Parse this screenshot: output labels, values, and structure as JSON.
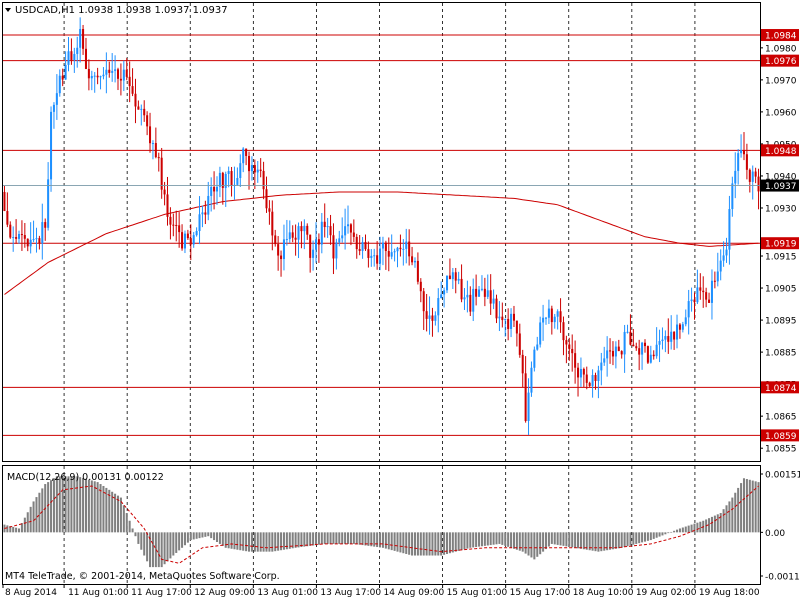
{
  "header": {
    "symbol_line": "USDCAD,H1  1.0938 1.0938 1.0937 1.0937"
  },
  "footer": {
    "copyright": "MT4 TeleTrade, © 2001-2014, MetaQuotes Software Corp."
  },
  "colors": {
    "background": "#ffffff",
    "bull_candle": "#1e90ff",
    "bear_candle": "#cc0000",
    "level_line": "#cc0000",
    "moving_average": "#cc0000",
    "grid": "#000000",
    "price_tag_bg": "#cc0000",
    "current_price_tag_bg": "#000000",
    "macd_histogram": "#808080",
    "macd_signal": "#cc0000"
  },
  "chart_data": [
    {
      "type": "candlestick",
      "title": "USDCAD,H1",
      "ylim": [
        1.0851,
        1.0994
      ],
      "yticks": [
        1.098,
        1.097,
        1.096,
        1.095,
        1.094,
        1.093,
        1.0915,
        1.0905,
        1.0895,
        1.0885,
        1.0875,
        1.0865,
        1.0855
      ],
      "xticks": [
        "8 Aug 2014",
        "11 Aug 01:00",
        "11 Aug 17:00",
        "12 Aug 09:00",
        "13 Aug 01:00",
        "13 Aug 17:00",
        "14 Aug 09:00",
        "15 Aug 01:00",
        "15 Aug 17:00",
        "18 Aug 10:00",
        "19 Aug 02:00",
        "19 Aug 18:00"
      ],
      "horizontal_levels": [
        1.0984,
        1.0976,
        1.0948,
        1.0919,
        1.0874,
        1.0859
      ],
      "current_price": 1.0937,
      "price_path": [
        [
          0,
          1.0935
        ],
        [
          3,
          1.0918
        ],
        [
          7,
          1.092
        ],
        [
          12,
          1.0918
        ],
        [
          15,
          1.0925
        ],
        [
          17,
          1.0958
        ],
        [
          20,
          1.097
        ],
        [
          24,
          1.0978
        ],
        [
          27,
          1.0985
        ],
        [
          30,
          1.0972
        ],
        [
          33,
          1.0968
        ],
        [
          38,
          1.0972
        ],
        [
          42,
          1.0971
        ],
        [
          45,
          1.0965
        ],
        [
          48,
          1.096
        ],
        [
          51,
          1.0952
        ],
        [
          53,
          1.0948
        ],
        [
          55,
          1.0938
        ],
        [
          57,
          1.0927
        ],
        [
          60,
          1.0924
        ],
        [
          62,
          1.0918
        ],
        [
          65,
          1.0921
        ],
        [
          68,
          1.0926
        ],
        [
          71,
          1.0932
        ],
        [
          74,
          1.0937
        ],
        [
          77,
          1.094
        ],
        [
          80,
          1.0938
        ],
        [
          83,
          1.0946
        ],
        [
          86,
          1.0942
        ],
        [
          89,
          1.094
        ],
        [
          91,
          1.0932
        ],
        [
          93,
          1.092
        ],
        [
          95,
          1.0913
        ],
        [
          98,
          1.0921
        ],
        [
          101,
          1.0922
        ],
        [
          104,
          1.0924
        ],
        [
          106,
          1.0915
        ],
        [
          108,
          1.0919
        ],
        [
          111,
          1.0926
        ],
        [
          114,
          1.0917
        ],
        [
          116,
          1.0923
        ],
        [
          119,
          1.0927
        ],
        [
          122,
          1.0919
        ],
        [
          125,
          1.0918
        ],
        [
          127,
          1.0913
        ],
        [
          130,
          1.0916
        ],
        [
          133,
          1.0917
        ],
        [
          136,
          1.0918
        ],
        [
          139,
          1.0917
        ],
        [
          142,
          1.0913
        ],
        [
          144,
          1.0905
        ],
        [
          146,
          1.0896
        ],
        [
          149,
          1.0898
        ],
        [
          152,
          1.0906
        ],
        [
          155,
          1.091
        ],
        [
          158,
          1.0904
        ],
        [
          161,
          1.09
        ],
        [
          164,
          1.0907
        ],
        [
          167,
          1.0902
        ],
        [
          170,
          1.0898
        ],
        [
          173,
          1.0896
        ],
        [
          176,
          1.0893
        ],
        [
          178,
          1.0886
        ],
        [
          180,
          1.0866
        ],
        [
          182,
          1.0878
        ],
        [
          185,
          1.0893
        ],
        [
          188,
          1.0898
        ],
        [
          191,
          1.0895
        ],
        [
          194,
          1.0888
        ],
        [
          197,
          1.088
        ],
        [
          200,
          1.0878
        ],
        [
          203,
          1.0875
        ],
        [
          206,
          1.088
        ],
        [
          209,
          1.0886
        ],
        [
          212,
          1.0883
        ],
        [
          215,
          1.0892
        ],
        [
          218,
          1.0886
        ],
        [
          221,
          1.0885
        ],
        [
          224,
          1.0884
        ],
        [
          227,
          1.0888
        ],
        [
          230,
          1.0891
        ],
        [
          233,
          1.0893
        ],
        [
          236,
          1.0899
        ],
        [
          239,
          1.0903
        ],
        [
          242,
          1.0901
        ],
        [
          245,
          1.0908
        ],
        [
          247,
          1.0913
        ],
        [
          249,
          1.092
        ],
        [
          251,
          1.0935
        ],
        [
          253,
          1.0948
        ],
        [
          255,
          1.0944
        ],
        [
          257,
          1.0941
        ],
        [
          259,
          1.0937
        ]
      ],
      "moving_average": [
        [
          0,
          1.0903
        ],
        [
          15,
          1.0913
        ],
        [
          35,
          1.0922
        ],
        [
          55,
          1.0928
        ],
        [
          75,
          1.0932
        ],
        [
          95,
          1.0934
        ],
        [
          115,
          1.0935
        ],
        [
          135,
          1.0935
        ],
        [
          155,
          1.0934
        ],
        [
          175,
          1.0933
        ],
        [
          190,
          1.0931
        ],
        [
          205,
          1.0926
        ],
        [
          220,
          1.0921
        ],
        [
          232,
          1.0919
        ],
        [
          242,
          1.0918
        ],
        [
          259,
          1.0919
        ]
      ]
    },
    {
      "type": "bar",
      "title": "MACD(12,26,9) 0.00131 0.00122",
      "ylim": [
        -0.00113,
        0.00151
      ],
      "yticks": [
        0.00151,
        0.0,
        -0.00113
      ],
      "histogram_path": [
        [
          0,
          0.0002
        ],
        [
          5,
          0.0001
        ],
        [
          10,
          0.0008
        ],
        [
          14,
          0.00125
        ],
        [
          18,
          0.00145
        ],
        [
          25,
          0.00145
        ],
        [
          32,
          0.0013
        ],
        [
          40,
          0.0009
        ],
        [
          46,
          -0.0003
        ],
        [
          50,
          -0.0009
        ],
        [
          54,
          -0.0009
        ],
        [
          58,
          -0.0006
        ],
        [
          64,
          -0.0002
        ],
        [
          70,
          -0.0001
        ],
        [
          76,
          -0.0004
        ],
        [
          84,
          -0.0005
        ],
        [
          92,
          -0.0005
        ],
        [
          100,
          -0.0004
        ],
        [
          110,
          -0.0003
        ],
        [
          120,
          -0.0003
        ],
        [
          130,
          -0.0004
        ],
        [
          140,
          -0.0006
        ],
        [
          150,
          -0.0006
        ],
        [
          160,
          -0.0004
        ],
        [
          170,
          -0.0003
        ],
        [
          178,
          -0.0005
        ],
        [
          182,
          -0.0007
        ],
        [
          188,
          -0.0003
        ],
        [
          196,
          -0.0004
        ],
        [
          204,
          -0.0005
        ],
        [
          212,
          -0.0004
        ],
        [
          222,
          -0.0002
        ],
        [
          232,
          0.0001
        ],
        [
          240,
          0.0003
        ],
        [
          246,
          0.0005
        ],
        [
          250,
          0.0009
        ],
        [
          254,
          0.0014
        ],
        [
          259,
          0.0013
        ]
      ],
      "signal_path": [
        [
          0,
          0.0001
        ],
        [
          10,
          0.0003
        ],
        [
          20,
          0.0011
        ],
        [
          30,
          0.0012
        ],
        [
          40,
          0.0008
        ],
        [
          48,
          0.0001
        ],
        [
          54,
          -0.0007
        ],
        [
          60,
          -0.0008
        ],
        [
          68,
          -0.0004
        ],
        [
          78,
          -0.0003
        ],
        [
          90,
          -0.0004
        ],
        [
          110,
          -0.0003
        ],
        [
          130,
          -0.0003
        ],
        [
          150,
          -0.0005
        ],
        [
          165,
          -0.0004
        ],
        [
          180,
          -0.0004
        ],
        [
          195,
          -0.0004
        ],
        [
          210,
          -0.0004
        ],
        [
          222,
          -0.0003
        ],
        [
          232,
          -0.0001
        ],
        [
          242,
          0.0002
        ],
        [
          250,
          0.0006
        ],
        [
          259,
          0.0012
        ]
      ]
    }
  ]
}
